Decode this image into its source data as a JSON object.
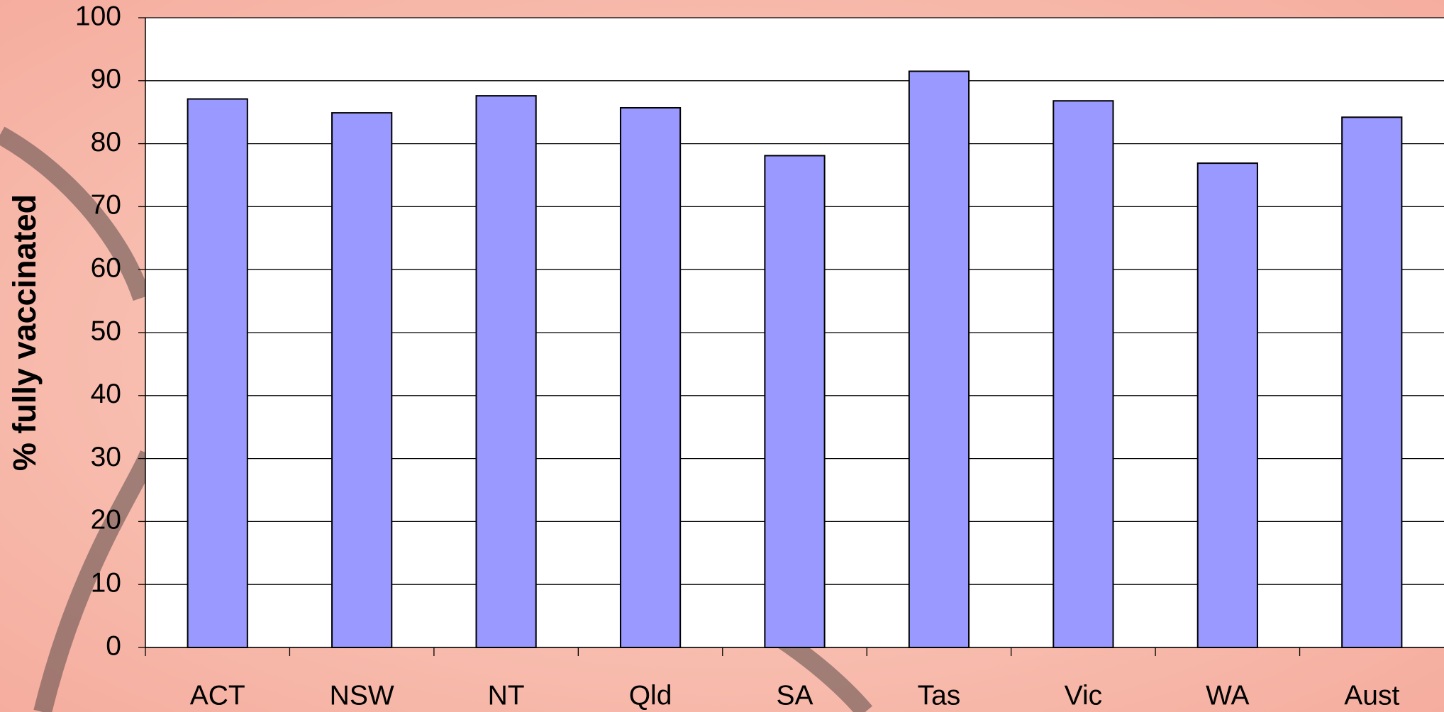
{
  "chart_data": {
    "type": "bar",
    "y_label": "% fully vaccinated",
    "categories": [
      "ACT",
      "NSW",
      "NT",
      "Qld",
      "SA",
      "Tas",
      "Vic",
      "WA",
      "Aust"
    ],
    "values": [
      87.1,
      84.9,
      87.6,
      85.7,
      78.1,
      91.5,
      86.8,
      76.9,
      84.2
    ],
    "color": "#9999ff",
    "ylim": [
      0,
      100
    ],
    "yticks": [
      0,
      10,
      20,
      30,
      40,
      50,
      60,
      70,
      80,
      90,
      100
    ],
    "grid": true
  }
}
